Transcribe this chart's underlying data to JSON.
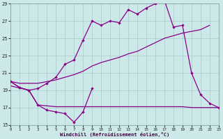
{
  "xlabel": "Windchill (Refroidissement éolien,°C)",
  "bg_color": "#cce8e8",
  "grid_color": "#a8cccc",
  "line_color": "#880088",
  "xlim": [
    0,
    23
  ],
  "ylim": [
    15,
    29
  ],
  "ytick_vals": [
    15,
    17,
    19,
    21,
    23,
    25,
    27,
    29
  ],
  "xtick_vals": [
    0,
    1,
    2,
    3,
    4,
    5,
    6,
    7,
    8,
    9,
    10,
    11,
    12,
    13,
    14,
    15,
    16,
    17,
    18,
    19,
    20,
    21,
    22,
    23
  ],
  "line_jagged_x": [
    0,
    1,
    2,
    3,
    4,
    5,
    6,
    7,
    8,
    9
  ],
  "line_jagged_y": [
    20.0,
    19.3,
    19.0,
    17.3,
    16.7,
    16.5,
    16.3,
    15.3,
    16.5,
    19.2
  ],
  "line_flat_x": [
    0,
    2,
    3,
    4,
    5,
    6,
    7,
    8,
    9,
    10,
    11,
    12,
    13,
    14,
    15,
    16,
    17,
    18,
    19,
    20,
    21,
    22,
    23
  ],
  "line_flat_y": [
    19.5,
    19.0,
    17.3,
    17.2,
    17.1,
    17.1,
    17.1,
    17.1,
    17.1,
    17.1,
    17.1,
    17.1,
    17.1,
    17.1,
    17.1,
    17.1,
    17.1,
    17.1,
    17.1,
    17.0,
    17.0,
    17.0,
    17.0
  ],
  "line_diag_x": [
    0,
    1,
    2,
    3,
    4,
    5,
    6,
    7,
    8,
    9,
    10,
    11,
    12,
    13,
    14,
    15,
    16,
    17,
    18,
    19,
    20,
    21,
    22
  ],
  "line_diag_y": [
    20.0,
    19.8,
    19.8,
    19.8,
    20.0,
    20.2,
    20.5,
    20.8,
    21.2,
    21.8,
    22.2,
    22.5,
    22.8,
    23.2,
    23.5,
    24.0,
    24.5,
    25.0,
    25.3,
    25.6,
    25.8,
    26.0,
    26.5
  ],
  "line_top_x": [
    0,
    1,
    2,
    3,
    4,
    5,
    6,
    7,
    8,
    9,
    10,
    11,
    12,
    13,
    14,
    15,
    16,
    17,
    18,
    19,
    20,
    21,
    22,
    23
  ],
  "line_top_y": [
    20.0,
    19.3,
    19.0,
    19.2,
    19.8,
    20.5,
    22.0,
    22.5,
    24.8,
    27.0,
    26.5,
    27.0,
    26.8,
    28.3,
    27.8,
    28.5,
    29.0,
    29.4,
    26.3,
    26.5,
    21.0,
    18.5,
    17.5,
    17.0
  ]
}
